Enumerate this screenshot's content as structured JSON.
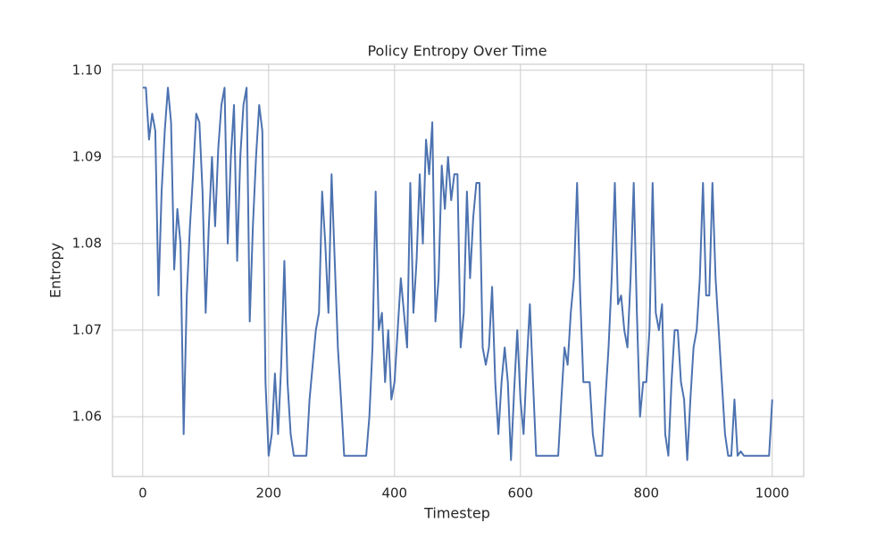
{
  "chart_data": {
    "type": "line",
    "title": "Policy Entropy Over Time",
    "xlabel": "Timestep",
    "ylabel": "Entropy",
    "x": [
      0,
      5,
      10,
      15,
      20,
      25,
      30,
      35,
      40,
      45,
      50,
      55,
      60,
      65,
      70,
      75,
      80,
      85,
      90,
      95,
      100,
      105,
      110,
      115,
      120,
      125,
      130,
      135,
      140,
      145,
      150,
      155,
      160,
      165,
      170,
      175,
      180,
      185,
      190,
      195,
      200,
      205,
      210,
      215,
      220,
      225,
      230,
      235,
      240,
      245,
      250,
      255,
      260,
      265,
      270,
      275,
      280,
      285,
      290,
      295,
      300,
      305,
      310,
      315,
      320,
      325,
      330,
      335,
      340,
      345,
      350,
      355,
      360,
      365,
      370,
      375,
      380,
      385,
      390,
      395,
      400,
      405,
      410,
      415,
      420,
      425,
      430,
      435,
      440,
      445,
      450,
      455,
      460,
      465,
      470,
      475,
      480,
      485,
      490,
      495,
      500,
      505,
      510,
      515,
      520,
      525,
      530,
      535,
      540,
      545,
      550,
      555,
      560,
      565,
      570,
      575,
      580,
      585,
      590,
      595,
      600,
      605,
      610,
      615,
      620,
      625,
      630,
      635,
      640,
      645,
      650,
      655,
      660,
      665,
      670,
      675,
      680,
      685,
      690,
      695,
      700,
      705,
      710,
      715,
      720,
      725,
      730,
      735,
      740,
      745,
      750,
      755,
      760,
      765,
      770,
      775,
      780,
      785,
      790,
      795,
      800,
      805,
      810,
      815,
      820,
      825,
      830,
      835,
      840,
      845,
      850,
      855,
      860,
      865,
      870,
      875,
      880,
      885,
      890,
      895,
      900,
      905,
      910,
      915,
      920,
      925,
      930,
      935,
      940,
      945,
      950,
      955,
      960,
      965,
      970,
      975,
      980,
      985,
      990,
      995,
      1000
    ],
    "series": [
      {
        "name": "Entropy",
        "color": "#4c72b0",
        "values": [
          1.098,
          1.098,
          1.092,
          1.095,
          1.093,
          1.074,
          1.086,
          1.093,
          1.098,
          1.094,
          1.077,
          1.084,
          1.08,
          1.058,
          1.074,
          1.082,
          1.088,
          1.095,
          1.094,
          1.086,
          1.072,
          1.082,
          1.09,
          1.082,
          1.091,
          1.096,
          1.098,
          1.08,
          1.09,
          1.096,
          1.078,
          1.09,
          1.096,
          1.098,
          1.071,
          1.082,
          1.09,
          1.096,
          1.093,
          1.064,
          1.0555,
          1.058,
          1.065,
          1.058,
          1.066,
          1.078,
          1.064,
          1.058,
          1.0555,
          1.0555,
          1.0555,
          1.0555,
          1.0555,
          1.062,
          1.066,
          1.07,
          1.072,
          1.086,
          1.08,
          1.072,
          1.088,
          1.078,
          1.068,
          1.062,
          1.0555,
          1.0555,
          1.0555,
          1.0555,
          1.0555,
          1.0555,
          1.0555,
          1.0555,
          1.06,
          1.068,
          1.086,
          1.07,
          1.072,
          1.064,
          1.07,
          1.062,
          1.064,
          1.07,
          1.076,
          1.072,
          1.068,
          1.087,
          1.072,
          1.078,
          1.088,
          1.08,
          1.092,
          1.088,
          1.094,
          1.071,
          1.076,
          1.089,
          1.084,
          1.09,
          1.085,
          1.088,
          1.088,
          1.068,
          1.072,
          1.086,
          1.076,
          1.083,
          1.087,
          1.087,
          1.068,
          1.066,
          1.068,
          1.075,
          1.064,
          1.058,
          1.064,
          1.068,
          1.064,
          1.055,
          1.063,
          1.07,
          1.062,
          1.058,
          1.066,
          1.073,
          1.064,
          1.0555,
          1.0555,
          1.0555,
          1.0555,
          1.0555,
          1.0555,
          1.0555,
          1.0555,
          1.062,
          1.068,
          1.066,
          1.072,
          1.076,
          1.087,
          1.074,
          1.064,
          1.064,
          1.064,
          1.058,
          1.0555,
          1.0555,
          1.0555,
          1.062,
          1.068,
          1.076,
          1.087,
          1.073,
          1.074,
          1.07,
          1.068,
          1.076,
          1.087,
          1.072,
          1.06,
          1.064,
          1.064,
          1.07,
          1.087,
          1.072,
          1.07,
          1.073,
          1.058,
          1.0555,
          1.064,
          1.07,
          1.07,
          1.064,
          1.062,
          1.055,
          1.062,
          1.068,
          1.07,
          1.076,
          1.087,
          1.074,
          1.074,
          1.087,
          1.076,
          1.07,
          1.064,
          1.058,
          1.0555,
          1.0555,
          1.062,
          1.0555,
          1.056,
          1.0555,
          1.0555,
          1.0555,
          1.0555,
          1.0555,
          1.0555,
          1.0555,
          1.0555,
          1.0555,
          1.062
        ]
      }
    ],
    "xlim": [
      -48,
      1050
    ],
    "ylim": [
      1.0531,
      1.1007
    ],
    "xticks": [
      0,
      200,
      400,
      600,
      800,
      1000
    ],
    "yticks": [
      1.06,
      1.07,
      1.08,
      1.09,
      {
        "value": 1.1,
        "label": "1.10"
      }
    ],
    "grid": true
  }
}
